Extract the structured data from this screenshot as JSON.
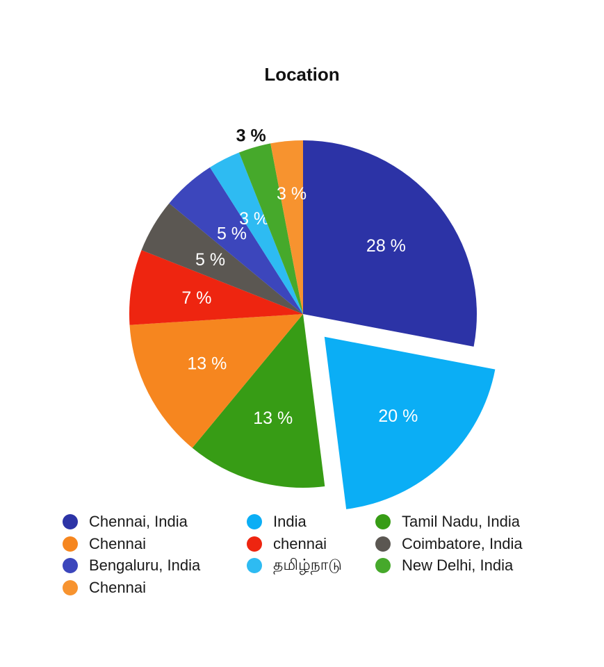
{
  "chart_data": {
    "type": "pie",
    "title": "Location",
    "slices": [
      {
        "label": "Chennai, India",
        "value": 28,
        "display": "28 %",
        "color": "#2C33A6",
        "exploded": false
      },
      {
        "label": "India",
        "value": 20,
        "display": "20 %",
        "color": "#0BAEF5",
        "exploded": true
      },
      {
        "label": "Tamil Nadu, India",
        "value": 13,
        "display": "13 %",
        "color": "#379C15",
        "exploded": false
      },
      {
        "label": "Chennai",
        "value": 13,
        "display": "13 %",
        "color": "#F6861F",
        "exploded": false
      },
      {
        "label": "chennai",
        "value": 7,
        "display": "7 %",
        "color": "#EE2510",
        "exploded": false
      },
      {
        "label": "Coimbatore, India",
        "value": 5,
        "display": "5 %",
        "color": "#5B5752",
        "exploded": false
      },
      {
        "label": "Bengaluru, India",
        "value": 5,
        "display": "5 %",
        "color": "#3C46BC",
        "exploded": false
      },
      {
        "label": "தமிழ்நாடு",
        "value": 3,
        "display": "3 %",
        "color": "#2EBBF2",
        "exploded": false
      },
      {
        "label": "New Delhi, India",
        "value": 3,
        "display": "3 %",
        "color": "#46A92B",
        "exploded": false
      },
      {
        "label": "Chennai",
        "value": 3,
        "display": "3 %",
        "color": "#F7932F",
        "exploded": false
      }
    ],
    "legend_placement": "bottom",
    "legend_columns": 3
  }
}
